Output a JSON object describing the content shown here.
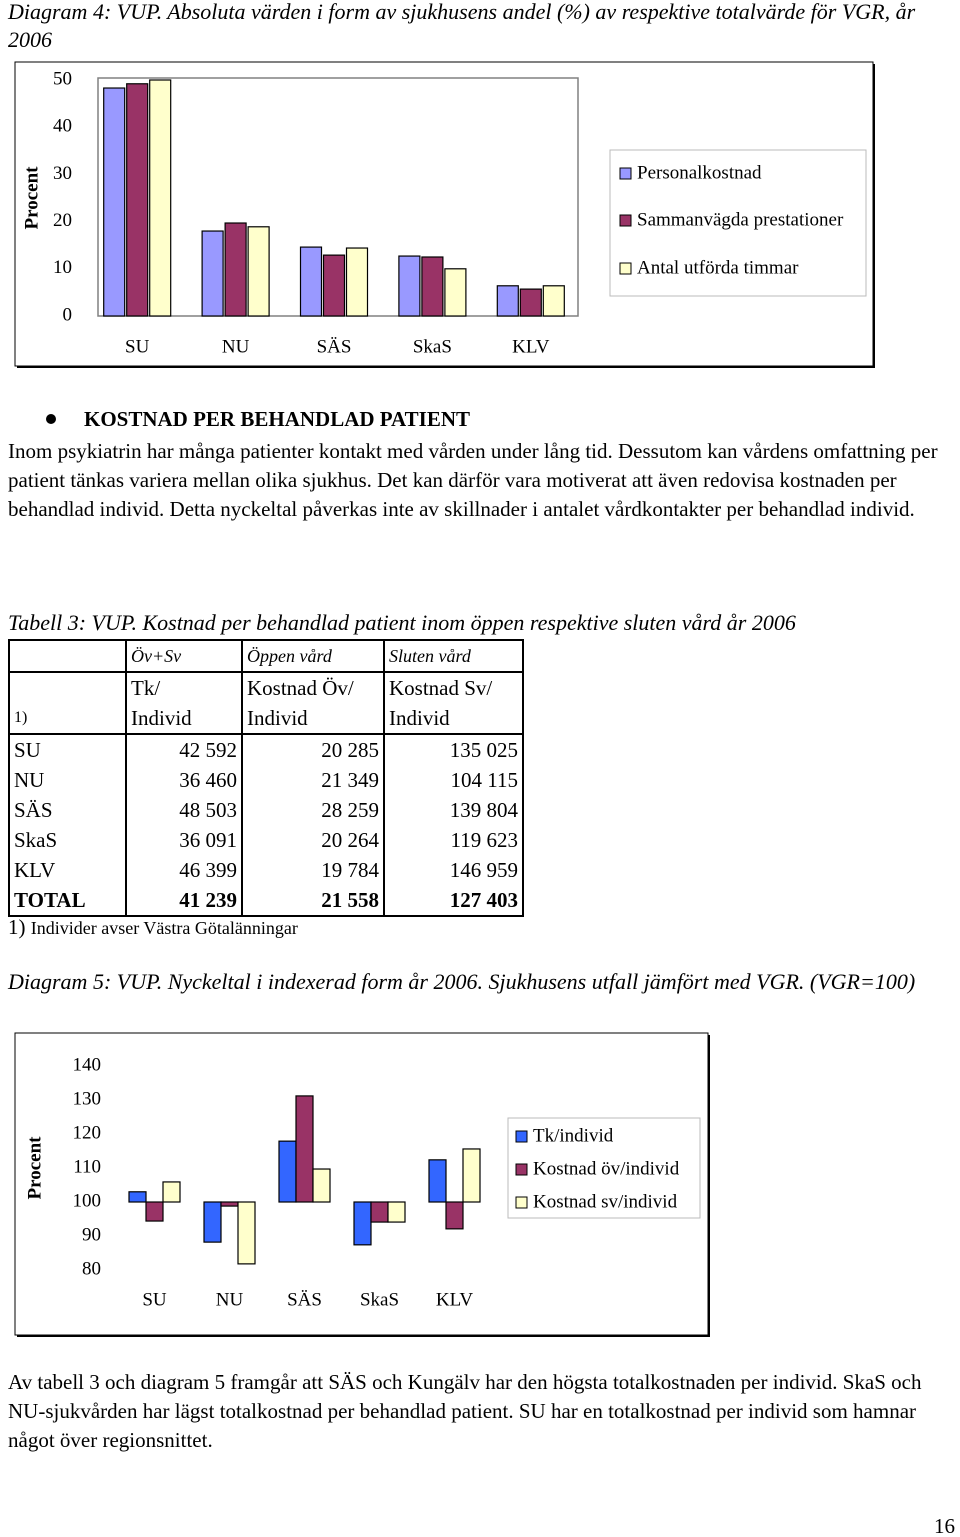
{
  "chart_data": [
    {
      "type": "bar",
      "title": "Diagram 4: VUP. Absoluta värden i form av sjukhusens andel (%) av respektive totalvärde för VGR, år 2006",
      "ylabel": "Procent",
      "categories": [
        "SU",
        "NU",
        "SÄS",
        "SkaS",
        "KLV"
      ],
      "series": [
        {
          "name": "Personalkostnad",
          "color": "#9999ff",
          "values": [
            48.3,
            18,
            14.6,
            12.7,
            6.4
          ]
        },
        {
          "name": "Sammanvägda prestationer",
          "color": "#993366",
          "values": [
            49.2,
            19.7,
            12.9,
            12.5,
            5.7
          ]
        },
        {
          "name": "Antal utförda timmar",
          "color": "#ffffcc",
          "values": [
            50,
            18.9,
            14.4,
            10,
            6.4
          ]
        }
      ],
      "ylim": [
        0,
        50
      ],
      "yticks": [
        0,
        10,
        20,
        30,
        40,
        50
      ],
      "grid": false,
      "legend": "right"
    },
    {
      "type": "bar",
      "title": "Diagram 5: VUP. Nyckeltal i indexerad form år 2006. Sjukhusens utfall jämfört med VGR. (VGR=100)",
      "ylabel": "Procent",
      "categories": [
        "SU",
        "NU",
        "SÄS",
        "SkaS",
        "KLV"
      ],
      "series": [
        {
          "name": "Tk/individ",
          "color": "#3366ff",
          "values": [
            103,
            88.2,
            117.9,
            87.4,
            112.4
          ]
        },
        {
          "name": "Kostnad öv/individ",
          "color": "#993366",
          "values": [
            94.4,
            98.8,
            131.2,
            94.1,
            92.1
          ]
        },
        {
          "name": "Kostnad sv/individ",
          "color": "#ffffcc",
          "values": [
            105.9,
            81.8,
            109.7,
            94.1,
            115.6
          ]
        }
      ],
      "ylim": [
        80,
        140
      ],
      "yticks": [
        80,
        90,
        100,
        110,
        120,
        130,
        140
      ],
      "bar_base": 100,
      "grid": false,
      "legend": "right"
    }
  ],
  "document": {
    "bullet_heading": "KOSTNAD PER BEHANDLAD PATIENT",
    "paragraph_1": "Inom psykiatrin har många patienter kontakt med vården under lång tid. Dessutom kan vårdens omfattning per patient tänkas variera mellan olika sjukhus. Det kan därför vara motiverat att även redovisa kostnaden per behandlad individ. Detta nyckeltal påverkas inte av skillnader i antalet vårdkontakter per behandlad individ.",
    "table": {
      "caption": "Tabell 3: VUP. Kostnad per behandlad patient inom öppen respektive sluten vård år 2006",
      "header_rows": [
        [
          null,
          "Öv+Sv",
          "Öppen vård",
          "Sluten vård"
        ],
        [
          null,
          "Tk/",
          "Kostnad Öv/",
          "Kostnad Sv/"
        ],
        [
          "1)",
          "Individ",
          "Individ",
          "Individ"
        ]
      ],
      "rows": [
        [
          "SU",
          "42 592",
          "20 285",
          "135 025"
        ],
        [
          "NU",
          "36 460",
          "21 349",
          "104 115"
        ],
        [
          "SÄS",
          "48 503",
          "28 259",
          "139 804"
        ],
        [
          "SkaS",
          "36 091",
          "20 264",
          "119 623"
        ],
        [
          "KLV",
          "46 399",
          "19 784",
          "146 959"
        ],
        [
          "TOTAL",
          "41 239",
          "21 558",
          "127 403"
        ]
      ],
      "footnote_mark": "1)",
      "footnote_text": "Individer avser Västra Götalänningar"
    },
    "paragraph_2": "Av tabell 3 och diagram 5 framgår att SÄS och Kungälv har den högsta totalkostnaden per individ. SkaS och NU-sjukvården har lägst totalkostnad per behandlad patient. SU har en totalkostnad per individ som hamnar något över regionsnittet.",
    "page_number": "16"
  }
}
